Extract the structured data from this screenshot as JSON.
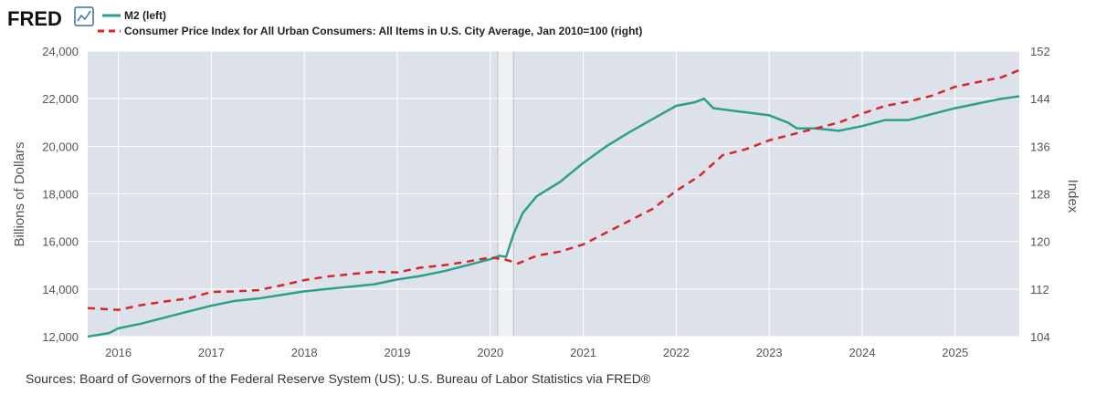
{
  "brand": {
    "logo_text": "FRED"
  },
  "source_note": "Sources: Board of Governors of the Federal Reserve System (US); U.S. Bureau of Labor Statistics via FRED®",
  "chart_data": {
    "type": "line",
    "title": "",
    "legend_placement": "top-left",
    "grid": true,
    "plot_background": "#dde2ea",
    "x_range": [
      2015.67,
      2025.69
    ],
    "x_ticks": [
      2016,
      2017,
      2018,
      2019,
      2020,
      2021,
      2022,
      2023,
      2024,
      2025
    ],
    "x_tick_labels": [
      "2016",
      "2017",
      "2018",
      "2019",
      "2020",
      "2021",
      "2022",
      "2023",
      "2024",
      "2025"
    ],
    "recession_bands": [
      [
        2020.08,
        2020.25
      ]
    ],
    "y_left": {
      "label": "Billions of Dollars",
      "range": [
        12000,
        24000
      ],
      "ticks": [
        12000,
        14000,
        16000,
        18000,
        20000,
        22000,
        24000
      ],
      "tick_labels": [
        "12,000",
        "14,000",
        "16,000",
        "18,000",
        "20,000",
        "22,000",
        "24,000"
      ]
    },
    "y_right": {
      "label": "Index",
      "range": [
        104,
        152
      ],
      "ticks": [
        104,
        112,
        120,
        128,
        136,
        144,
        152
      ],
      "tick_labels": [
        "104",
        "112",
        "120",
        "128",
        "136",
        "144",
        "152"
      ]
    },
    "series": [
      {
        "name": "M2 (left)",
        "axis": "left",
        "color": "#2e9e8c",
        "style": "solid",
        "points": [
          [
            2015.67,
            12000
          ],
          [
            2015.9,
            12150
          ],
          [
            2016.0,
            12350
          ],
          [
            2016.25,
            12550
          ],
          [
            2016.5,
            12800
          ],
          [
            2016.75,
            13050
          ],
          [
            2017.0,
            13300
          ],
          [
            2017.25,
            13500
          ],
          [
            2017.5,
            13600
          ],
          [
            2017.75,
            13750
          ],
          [
            2018.0,
            13900
          ],
          [
            2018.25,
            14000
          ],
          [
            2018.5,
            14100
          ],
          [
            2018.75,
            14200
          ],
          [
            2019.0,
            14400
          ],
          [
            2019.25,
            14550
          ],
          [
            2019.5,
            14750
          ],
          [
            2019.75,
            15000
          ],
          [
            2020.0,
            15250
          ],
          [
            2020.1,
            15400
          ],
          [
            2020.17,
            15350
          ],
          [
            2020.25,
            16300
          ],
          [
            2020.35,
            17200
          ],
          [
            2020.5,
            17900
          ],
          [
            2020.75,
            18500
          ],
          [
            2021.0,
            19300
          ],
          [
            2021.25,
            20000
          ],
          [
            2021.5,
            20600
          ],
          [
            2021.75,
            21150
          ],
          [
            2022.0,
            21700
          ],
          [
            2022.2,
            21850
          ],
          [
            2022.3,
            22000
          ],
          [
            2022.4,
            21600
          ],
          [
            2022.6,
            21500
          ],
          [
            2022.8,
            21400
          ],
          [
            2023.0,
            21300
          ],
          [
            2023.2,
            21000
          ],
          [
            2023.3,
            20750
          ],
          [
            2023.5,
            20750
          ],
          [
            2023.75,
            20650
          ],
          [
            2024.0,
            20850
          ],
          [
            2024.25,
            21100
          ],
          [
            2024.5,
            21100
          ],
          [
            2024.75,
            21350
          ],
          [
            2025.0,
            21600
          ],
          [
            2025.25,
            21800
          ],
          [
            2025.5,
            22000
          ],
          [
            2025.69,
            22100
          ]
        ]
      },
      {
        "name": "Consumer Price Index for All Urban Consumers: All Items in U.S. City Average, Jan 2010=100 (right)",
        "axis": "right",
        "color": "#d62728",
        "style": "dashed",
        "points": [
          [
            2015.67,
            108.8
          ],
          [
            2016.0,
            108.5
          ],
          [
            2016.25,
            109.3
          ],
          [
            2016.5,
            109.9
          ],
          [
            2016.75,
            110.4
          ],
          [
            2017.0,
            111.5
          ],
          [
            2017.25,
            111.6
          ],
          [
            2017.5,
            111.8
          ],
          [
            2017.75,
            112.6
          ],
          [
            2018.0,
            113.5
          ],
          [
            2018.25,
            114.1
          ],
          [
            2018.5,
            114.5
          ],
          [
            2018.75,
            114.9
          ],
          [
            2019.0,
            114.8
          ],
          [
            2019.25,
            115.6
          ],
          [
            2019.5,
            116.0
          ],
          [
            2019.75,
            116.6
          ],
          [
            2020.0,
            117.3
          ],
          [
            2020.15,
            117.0
          ],
          [
            2020.3,
            116.3
          ],
          [
            2020.5,
            117.6
          ],
          [
            2020.75,
            118.3
          ],
          [
            2021.0,
            119.5
          ],
          [
            2021.25,
            121.5
          ],
          [
            2021.5,
            123.5
          ],
          [
            2021.75,
            125.5
          ],
          [
            2022.0,
            128.5
          ],
          [
            2022.25,
            131.0
          ],
          [
            2022.5,
            134.5
          ],
          [
            2022.75,
            135.5
          ],
          [
            2023.0,
            137.0
          ],
          [
            2023.25,
            138.0
          ],
          [
            2023.5,
            139.0
          ],
          [
            2023.75,
            140.0
          ],
          [
            2024.0,
            141.5
          ],
          [
            2024.25,
            142.8
          ],
          [
            2024.5,
            143.5
          ],
          [
            2024.75,
            144.5
          ],
          [
            2025.0,
            146.0
          ],
          [
            2025.25,
            146.8
          ],
          [
            2025.5,
            147.6
          ],
          [
            2025.69,
            148.8
          ]
        ]
      }
    ]
  }
}
